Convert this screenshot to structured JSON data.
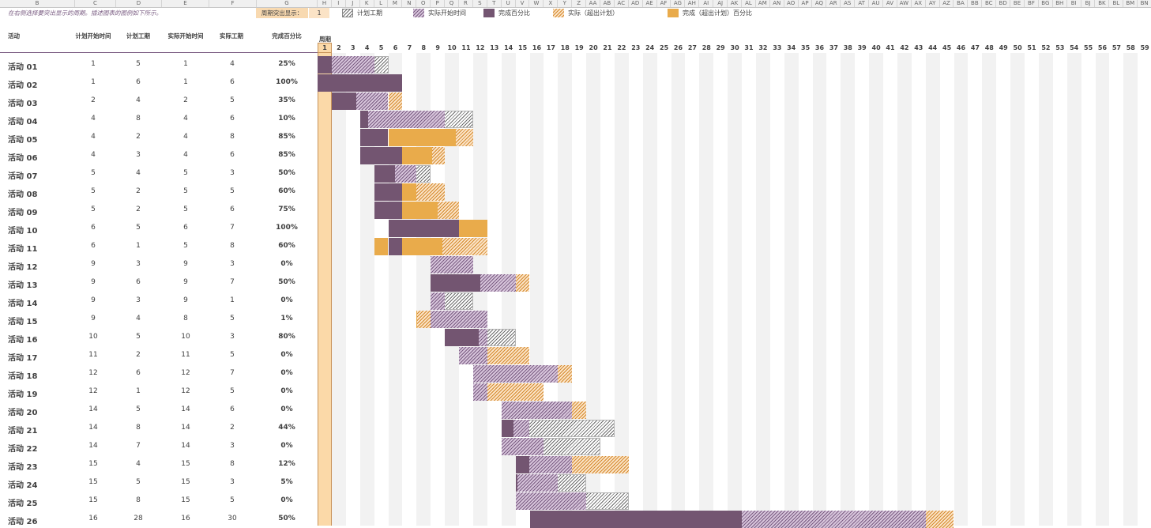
{
  "column_headers": [
    "B",
    "C",
    "D",
    "E",
    "F",
    "G",
    "H",
    "I",
    "J",
    "K",
    "L",
    "M",
    "N",
    "O",
    "P",
    "Q",
    "R",
    "S",
    "T",
    "U",
    "V",
    "W",
    "X",
    "Y",
    "Z",
    "AA",
    "AB",
    "AC",
    "AD",
    "AE",
    "AF",
    "AG",
    "AH",
    "AI",
    "AJ",
    "AK",
    "AL",
    "AM",
    "AN",
    "AO",
    "AP",
    "AQ",
    "AR",
    "AS",
    "AT",
    "AU",
    "AV",
    "AW",
    "AX",
    "AY",
    "AZ",
    "BA",
    "BB",
    "BC",
    "BD",
    "BE",
    "BF",
    "BG",
    "BH",
    "BI",
    "BJ",
    "BK",
    "BL",
    "BM",
    "BN",
    "BO"
  ],
  "note": "在右侧选择要突出显示的周期。插述图表的图例如下所示。",
  "highlight": {
    "label": "周期突出显示：",
    "value": "1",
    "period": 1
  },
  "legend": [
    {
      "label": "计划工期",
      "swatch": "plan"
    },
    {
      "label": "实际开始时间",
      "swatch": "actual"
    },
    {
      "label": "完成百分比",
      "swatch": "complete"
    },
    {
      "label": "实际（超出计划）",
      "swatch": "actover"
    },
    {
      "label": "完成（超出计划）百分比",
      "swatch": "compover"
    }
  ],
  "table_headers": {
    "activity": "活动",
    "plan_start": "计划开始时间",
    "plan_duration": "计划工期",
    "actual_start": "实际开始时间",
    "actual_duration": "实际工期",
    "percent": "完成百分比",
    "period": "周期"
  },
  "periods": [
    1,
    2,
    3,
    4,
    5,
    6,
    7,
    8,
    9,
    10,
    11,
    12,
    13,
    14,
    15,
    16,
    17,
    18,
    19,
    20,
    21,
    22,
    23,
    24,
    25,
    26,
    27,
    28,
    29,
    30,
    31,
    32,
    33,
    34,
    35,
    36,
    37,
    38,
    39,
    40,
    41,
    42,
    43,
    44,
    45,
    46,
    47,
    48,
    49,
    50,
    51,
    52,
    53,
    54,
    55,
    56,
    57,
    58,
    59,
    60
  ],
  "activities": [
    {
      "name": "活动 01",
      "plan_start": 1,
      "plan_duration": 5,
      "actual_start": 1,
      "actual_duration": 4,
      "percent": "25%",
      "pct": 0.25
    },
    {
      "name": "活动 02",
      "plan_start": 1,
      "plan_duration": 6,
      "actual_start": 1,
      "actual_duration": 6,
      "percent": "100%",
      "pct": 1.0
    },
    {
      "name": "活动 03",
      "plan_start": 2,
      "plan_duration": 4,
      "actual_start": 2,
      "actual_duration": 5,
      "percent": "35%",
      "pct": 0.35
    },
    {
      "name": "活动 04",
      "plan_start": 4,
      "plan_duration": 8,
      "actual_start": 4,
      "actual_duration": 6,
      "percent": "10%",
      "pct": 0.1
    },
    {
      "name": "活动 05",
      "plan_start": 4,
      "plan_duration": 2,
      "actual_start": 4,
      "actual_duration": 8,
      "percent": "85%",
      "pct": 0.85
    },
    {
      "name": "活动 06",
      "plan_start": 4,
      "plan_duration": 3,
      "actual_start": 4,
      "actual_duration": 6,
      "percent": "85%",
      "pct": 0.85
    },
    {
      "name": "活动 07",
      "plan_start": 5,
      "plan_duration": 4,
      "actual_start": 5,
      "actual_duration": 3,
      "percent": "50%",
      "pct": 0.5
    },
    {
      "name": "活动 08",
      "plan_start": 5,
      "plan_duration": 2,
      "actual_start": 5,
      "actual_duration": 5,
      "percent": "60%",
      "pct": 0.6
    },
    {
      "name": "活动 09",
      "plan_start": 5,
      "plan_duration": 2,
      "actual_start": 5,
      "actual_duration": 6,
      "percent": "75%",
      "pct": 0.75
    },
    {
      "name": "活动 10",
      "plan_start": 6,
      "plan_duration": 5,
      "actual_start": 6,
      "actual_duration": 7,
      "percent": "100%",
      "pct": 1.0
    },
    {
      "name": "活动 11",
      "plan_start": 6,
      "plan_duration": 1,
      "actual_start": 5,
      "actual_duration": 8,
      "percent": "60%",
      "pct": 0.6
    },
    {
      "name": "活动 12",
      "plan_start": 9,
      "plan_duration": 3,
      "actual_start": 9,
      "actual_duration": 3,
      "percent": "0%",
      "pct": 0
    },
    {
      "name": "活动 13",
      "plan_start": 9,
      "plan_duration": 6,
      "actual_start": 9,
      "actual_duration": 7,
      "percent": "50%",
      "pct": 0.5
    },
    {
      "name": "活动 14",
      "plan_start": 9,
      "plan_duration": 3,
      "actual_start": 9,
      "actual_duration": 1,
      "percent": "0%",
      "pct": 0
    },
    {
      "name": "活动 15",
      "plan_start": 9,
      "plan_duration": 4,
      "actual_start": 8,
      "actual_duration": 5,
      "percent": "1%",
      "pct": 0.01
    },
    {
      "name": "活动 16",
      "plan_start": 10,
      "plan_duration": 5,
      "actual_start": 10,
      "actual_duration": 3,
      "percent": "80%",
      "pct": 0.8
    },
    {
      "name": "活动 17",
      "plan_start": 11,
      "plan_duration": 2,
      "actual_start": 11,
      "actual_duration": 5,
      "percent": "0%",
      "pct": 0
    },
    {
      "name": "活动 18",
      "plan_start": 12,
      "plan_duration": 6,
      "actual_start": 12,
      "actual_duration": 7,
      "percent": "0%",
      "pct": 0
    },
    {
      "name": "活动 19",
      "plan_start": 12,
      "plan_duration": 1,
      "actual_start": 12,
      "actual_duration": 5,
      "percent": "0%",
      "pct": 0
    },
    {
      "name": "活动 20",
      "plan_start": 14,
      "plan_duration": 5,
      "actual_start": 14,
      "actual_duration": 6,
      "percent": "0%",
      "pct": 0
    },
    {
      "name": "活动 21",
      "plan_start": 14,
      "plan_duration": 8,
      "actual_start": 14,
      "actual_duration": 2,
      "percent": "44%",
      "pct": 0.44
    },
    {
      "name": "活动 22",
      "plan_start": 14,
      "plan_duration": 7,
      "actual_start": 14,
      "actual_duration": 3,
      "percent": "0%",
      "pct": 0
    },
    {
      "name": "活动 23",
      "plan_start": 15,
      "plan_duration": 4,
      "actual_start": 15,
      "actual_duration": 8,
      "percent": "12%",
      "pct": 0.12
    },
    {
      "name": "活动 24",
      "plan_start": 15,
      "plan_duration": 5,
      "actual_start": 15,
      "actual_duration": 3,
      "percent": "5%",
      "pct": 0.05
    },
    {
      "name": "活动 25",
      "plan_start": 15,
      "plan_duration": 8,
      "actual_start": 15,
      "actual_duration": 5,
      "percent": "0%",
      "pct": 0
    },
    {
      "name": "活动 26",
      "plan_start": 16,
      "plan_duration": 28,
      "actual_start": 16,
      "actual_duration": 30,
      "percent": "50%",
      "pct": 0.5
    }
  ]
}
